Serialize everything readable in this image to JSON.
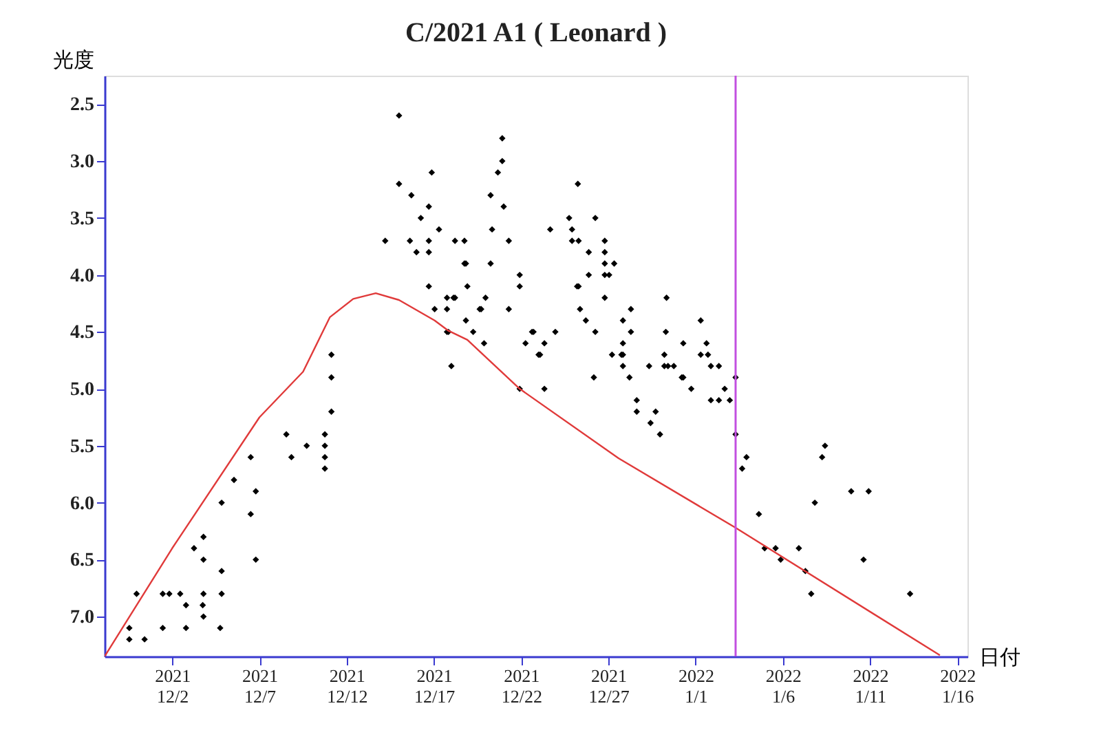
{
  "chart_data": {
    "type": "scatter",
    "title": "C/2021 A1 ( Leonard )",
    "xlabel": "日付",
    "ylabel": "光度",
    "xlim": [
      "2021-11-28T03:00",
      "2022-01-16T14:00"
    ],
    "xticks": [
      {
        "value": "2021-12-02",
        "label": "2021\n12/2"
      },
      {
        "value": "2021-12-07",
        "label": "2021\n12/7"
      },
      {
        "value": "2021-12-12",
        "label": "2021\n12/12"
      },
      {
        "value": "2021-12-17",
        "label": "2021\n12/17"
      },
      {
        "value": "2021-12-22",
        "label": "2021\n12/22"
      },
      {
        "value": "2021-12-27",
        "label": "2021\n12/27"
      },
      {
        "value": "2022-01-01",
        "label": "2022\n1/1"
      },
      {
        "value": "2022-01-06",
        "label": "2022\n1/6"
      },
      {
        "value": "2022-01-11",
        "label": "2022\n1/11"
      },
      {
        "value": "2022-01-16",
        "label": "2022\n1/16"
      }
    ],
    "ylim": [
      7.35,
      2.25
    ],
    "yticks": [
      {
        "value": 2.5,
        "label": "2.5"
      },
      {
        "value": 3,
        "label": "3.0"
      },
      {
        "value": 3.5,
        "label": "3.5"
      },
      {
        "value": 4,
        "label": "4.0"
      },
      {
        "value": 4.5,
        "label": "4.5"
      },
      {
        "value": 5,
        "label": "5.0"
      },
      {
        "value": 5.5,
        "label": "5.5"
      },
      {
        "value": 6,
        "label": "6.0"
      },
      {
        "value": 6.5,
        "label": "6.5"
      },
      {
        "value": 7,
        "label": "7.0"
      }
    ],
    "grid": false,
    "ref_lines": [
      {
        "axis": "x",
        "value": "2022-01-03T07:00",
        "color": "#c24fe0",
        "line_style": "solid"
      }
    ],
    "series": [
      {
        "type": "scatter",
        "color": "#000000",
        "marker": "diamond",
        "x": [
          "2021-11-29T13:00",
          "2021-11-29T13:00",
          "2021-11-29T23:00",
          "2021-11-30T10:00",
          "2021-12-01T11:00",
          "2021-12-01T11:00",
          "2021-12-01T20:00",
          "2021-12-02T11:00",
          "2021-12-02T19:00",
          "2021-12-02T19:00",
          "2021-12-03T06:00",
          "2021-12-03T19:00",
          "2021-12-03T19:00",
          "2021-12-03T19:00",
          "2021-12-03T18:00",
          "2021-12-03T19:00",
          "2021-12-04T18:00",
          "2021-12-04T20:00",
          "2021-12-04T20:00",
          "2021-12-04T20:00",
          "2021-12-05T13:00",
          "2021-12-06T12:00",
          "2021-12-06T12:00",
          "2021-12-06T19:00",
          "2021-12-06T19:00",
          "2021-12-08T13:00",
          "2021-12-08T20:00",
          "2021-12-09T17:00",
          "2021-12-10T18:00",
          "2021-12-10T18:00",
          "2021-12-10T18:00",
          "2021-12-10T18:00",
          "2021-12-11T03:00",
          "2021-12-11T03:00",
          "2021-12-11T03:00",
          "2021-12-15T00:00",
          "2021-12-14T05:00",
          "2021-12-15T00:00",
          "2021-12-15T17:00",
          "2021-12-16T21:00",
          "2021-12-16T17:00",
          "2021-12-16T06:00",
          "2021-12-17T07:00",
          "2021-12-15T15:00",
          "2021-12-16T17:00",
          "2021-12-16T00:00",
          "2021-12-16T17:00",
          "2021-12-18T05:00",
          "2021-12-18T18:00",
          "2021-12-18T18:00",
          "2021-12-18T20:00",
          "2021-12-16T17:00",
          "2021-12-17T01:00",
          "2021-12-17T18:00",
          "2021-12-18T03:00",
          "2021-12-18T05:00",
          "2021-12-17T18:00",
          "2021-12-17T20:00",
          "2021-12-17T18:00",
          "2021-12-18T00:00",
          "2021-12-18T20:00",
          "2021-12-18T22:00",
          "2021-12-19T06:00",
          "2021-12-19T17:00",
          "2021-12-19T15:00",
          "2021-12-19T23:00",
          "2021-12-19T21:00",
          "2021-12-20T06:00",
          "2021-12-20T06:00",
          "2021-12-20T08:00",
          "2021-12-20T16:00",
          "2021-12-20T22:00",
          "2021-12-20T22:00",
          "2021-12-21T00:00",
          "2021-12-21T07:00",
          "2021-12-21T07:00",
          "2021-12-21T22:00",
          "2021-12-21T22:00",
          "2021-12-21T22:00",
          "2021-12-22T06:00",
          "2021-12-22T17:00",
          "2021-12-22T15:00",
          "2021-12-23T02:00",
          "2021-12-23T00:00",
          "2021-12-23T08:00",
          "2021-12-23T08:00",
          "2021-12-23T16:00",
          "2021-12-23T23:00",
          "2021-12-24T18:00",
          "2021-12-24T22:00",
          "2021-12-24T22:00",
          "2021-12-25T07:00",
          "2021-12-25T06:00",
          "2021-12-25T07:00",
          "2021-12-25T05:00",
          "2021-12-25T09:00",
          "2021-12-25T17:00",
          "2021-12-25T21:00",
          "2021-12-25T21:00",
          "2021-12-26T04:00",
          "2021-12-26T06:00",
          "2021-12-26T06:00",
          "2021-12-26T19:00",
          "2021-12-26T19:00",
          "2021-12-26T19:00",
          "2021-12-27T08:00",
          "2021-12-26T19:00",
          "2021-12-27T01:00",
          "2021-12-26T19:00",
          "2021-12-27T05:00",
          "2021-12-27T20:00",
          "2021-12-27T18:00",
          "2021-12-27T20:00",
          "2021-12-27T20:00",
          "2021-12-27T20:00",
          "2021-12-28T05:00",
          "2021-12-28T07:00",
          "2021-12-28T07:00",
          "2021-12-28T15:00",
          "2021-12-28T15:00",
          "2021-12-29T08:00",
          "2021-12-29T10:00",
          "2021-12-29T17:00",
          "2021-12-29T23:00",
          "2021-12-30T08:00",
          "2021-12-30T07:00",
          "2021-12-30T05:00",
          "2021-12-30T05:00",
          "2021-12-30T10:00",
          "2021-12-30T18:00",
          "2021-12-31T07:00",
          "2021-12-31T05:00",
          "2021-12-31T07:00",
          "2021-12-31T18:00",
          "2022-01-01T07:00",
          "2022-01-01T07:00",
          "2022-01-01T17:00",
          "2022-01-01T15:00",
          "2022-01-01T21:00",
          "2022-01-02T08:00",
          "2022-01-01T21:00",
          "2022-01-02T08:00",
          "2022-01-02T23:00",
          "2022-01-02T16:00",
          "2022-01-03T07:00",
          "2022-01-03T07:00",
          "2022-01-03T16:00",
          "2022-01-03T22:00",
          "2022-01-04T15:00",
          "2022-01-04T23:00",
          "2022-01-05T14:00",
          "2022-01-05T21:00",
          "2022-01-06T22:00",
          "2022-01-07T07:00",
          "2022-01-07T15:00",
          "2022-01-07T20:00",
          "2022-01-08T06:00",
          "2022-01-08T10:00",
          "2022-01-09T22:00",
          "2022-01-10T15:00",
          "2022-01-10T22:00",
          "2022-01-13T07:00"
        ],
        "values": [
          7.1,
          7.2,
          6.8,
          7.2,
          6.8,
          7.1,
          6.8,
          6.8,
          6.9,
          7.1,
          6.4,
          6.3,
          6.5,
          6.8,
          6.9,
          7.0,
          7.1,
          6.6,
          6.8,
          6.0,
          5.8,
          5.6,
          6.1,
          5.9,
          6.5,
          5.4,
          5.6,
          5.5,
          5.4,
          5.5,
          5.6,
          5.7,
          4.7,
          4.9,
          5.2,
          2.6,
          3.7,
          3.2,
          3.3,
          3.1,
          3.4,
          3.5,
          3.6,
          3.7,
          3.7,
          3.8,
          3.8,
          3.7,
          3.7,
          3.9,
          3.9,
          4.1,
          4.3,
          4.2,
          4.2,
          4.2,
          4.3,
          4.5,
          4.5,
          4.8,
          4.4,
          4.1,
          4.5,
          4.3,
          4.3,
          4.2,
          4.6,
          3.9,
          3.3,
          3.6,
          3.1,
          2.8,
          3.0,
          3.4,
          3.7,
          4.3,
          4.0,
          4.1,
          5.0,
          4.6,
          4.5,
          4.5,
          4.7,
          4.7,
          4.6,
          5.0,
          3.6,
          4.5,
          3.5,
          3.6,
          3.7,
          3.7,
          3.2,
          4.1,
          4.1,
          4.3,
          4.4,
          3.8,
          4.0,
          4.9,
          3.5,
          4.5,
          3.7,
          3.8,
          3.9,
          3.9,
          4.0,
          4.0,
          4.2,
          4.7,
          4.7,
          4.7,
          4.4,
          4.6,
          4.8,
          4.9,
          4.3,
          4.5,
          5.1,
          5.2,
          4.8,
          5.3,
          5.2,
          5.4,
          4.2,
          4.5,
          4.7,
          4.8,
          4.8,
          4.8,
          4.9,
          4.9,
          4.6,
          5.0,
          4.4,
          4.7,
          4.7,
          4.6,
          4.8,
          4.8,
          5.1,
          5.1,
          5.1,
          5.0,
          4.9,
          5.4,
          5.7,
          5.6,
          6.1,
          6.4,
          6.4,
          6.5,
          6.4,
          6.6,
          6.8,
          6.0,
          5.6,
          5.5,
          5.9,
          6.5,
          5.9,
          6.8
        ]
      },
      {
        "type": "line",
        "color": "#e03a3a",
        "line_style": "solid",
        "x": [
          "2021-11-28T03:00",
          "2021-12-02T00:00",
          "2021-12-07T00:00",
          "2021-12-09T12:00",
          "2021-12-11T01:00",
          "2021-12-12T09:00",
          "2021-12-13T16:00",
          "2021-12-15T00:00",
          "2021-12-17T01:00",
          "2021-12-17T20:00",
          "2021-12-18T22:00",
          "2021-12-21T22:00",
          "2021-12-27T14:00",
          "2022-01-03T07:00",
          "2022-01-15T00:00"
        ],
        "values": [
          7.35,
          6.4,
          5.25,
          4.85,
          4.37,
          4.21,
          4.16,
          4.22,
          4.4,
          4.49,
          4.57,
          5.0,
          5.61,
          6.22,
          7.34
        ]
      }
    ]
  }
}
